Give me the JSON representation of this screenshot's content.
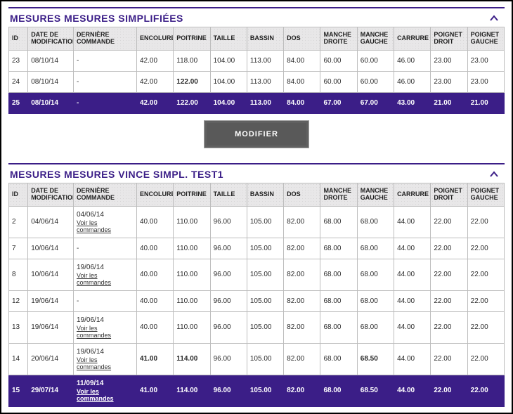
{
  "colors": {
    "brand": "#3b1e87",
    "selected_row_bg": "#3b1e87",
    "selected_row_fg": "#ffffff",
    "header_bg": "#e8e7e8",
    "header_dot": "#d6d5d6",
    "border": "#bdbdbd",
    "btn_bg": "#595959",
    "btn_border": "#606060",
    "text": "#2b2b2b"
  },
  "columns": [
    {
      "key": "id",
      "label": "ID"
    },
    {
      "key": "date_modif",
      "label": "DATE DE MODIFICATION"
    },
    {
      "key": "derniere_commande",
      "label": "DERNIÈRE COMMANDE"
    },
    {
      "key": "encolure",
      "label": "ENCOLURE"
    },
    {
      "key": "poitrine",
      "label": "POITRINE"
    },
    {
      "key": "taille",
      "label": "TAILLE"
    },
    {
      "key": "bassin",
      "label": "BASSIN"
    },
    {
      "key": "dos",
      "label": "DOS"
    },
    {
      "key": "manche_droite",
      "label": "MANCHE DROITE"
    },
    {
      "key": "manche_gauche",
      "label": "MANCHE GAUCHE"
    },
    {
      "key": "carrure",
      "label": "CARRURE"
    },
    {
      "key": "poignet_droit",
      "label": "POIGNET DROIT"
    },
    {
      "key": "poignet_gauche",
      "label": "POIGNET GAUCHE"
    }
  ],
  "modifier_label": "MODIFIER",
  "voir_link_text": "Voir les commandes",
  "section1": {
    "title": "MESURES MESURES SIMPLIFIÉES",
    "rows": [
      {
        "id": "23",
        "date_modif": "08/10/14",
        "derniere_commande": {
          "text": "-"
        },
        "encolure": "42.00",
        "poitrine": "118.00",
        "taille": "104.00",
        "bassin": "113.00",
        "dos": "84.00",
        "manche_droite": "60.00",
        "manche_gauche": "60.00",
        "carrure": "46.00",
        "poignet_droit": "23.00",
        "poignet_gauche": "23.00"
      },
      {
        "id": "24",
        "date_modif": "08/10/14",
        "derniere_commande": {
          "text": "-"
        },
        "encolure": "42.00",
        "poitrine": "122.00",
        "poitrine_bold": true,
        "taille": "104.00",
        "bassin": "113.00",
        "dos": "84.00",
        "manche_droite": "60.00",
        "manche_gauche": "60.00",
        "carrure": "46.00",
        "poignet_droit": "23.00",
        "poignet_gauche": "23.00"
      },
      {
        "id": "25",
        "date_modif": "08/10/14",
        "derniere_commande": {
          "text": "-"
        },
        "encolure": "42.00",
        "poitrine": "122.00",
        "taille": "104.00",
        "bassin": "113.00",
        "dos": "84.00",
        "manche_droite": "67.00",
        "manche_gauche": "67.00",
        "carrure": "43.00",
        "poignet_droit": "21.00",
        "poignet_gauche": "21.00",
        "selected": true,
        "bold_cols": [
          "manche_droite",
          "manche_gauche",
          "carrure",
          "poignet_droit",
          "poignet_gauche"
        ]
      }
    ]
  },
  "section2": {
    "title": "MESURES MESURES VINCE SIMPL. TEST1",
    "rows": [
      {
        "id": "2",
        "date_modif": "04/06/14",
        "derniere_commande": {
          "date": "04/06/14",
          "link": true
        },
        "encolure": "40.00",
        "poitrine": "110.00",
        "taille": "96.00",
        "bassin": "105.00",
        "dos": "82.00",
        "manche_droite": "68.00",
        "manche_gauche": "68.00",
        "carrure": "44.00",
        "poignet_droit": "22.00",
        "poignet_gauche": "22.00"
      },
      {
        "id": "7",
        "date_modif": "10/06/14",
        "derniere_commande": {
          "text": "-"
        },
        "encolure": "40.00",
        "poitrine": "110.00",
        "taille": "96.00",
        "bassin": "105.00",
        "dos": "82.00",
        "manche_droite": "68.00",
        "manche_gauche": "68.00",
        "carrure": "44.00",
        "poignet_droit": "22.00",
        "poignet_gauche": "22.00"
      },
      {
        "id": "8",
        "date_modif": "10/06/14",
        "derniere_commande": {
          "date": "19/06/14",
          "link": true
        },
        "encolure": "40.00",
        "poitrine": "110.00",
        "taille": "96.00",
        "bassin": "105.00",
        "dos": "82.00",
        "manche_droite": "68.00",
        "manche_gauche": "68.00",
        "carrure": "44.00",
        "poignet_droit": "22.00",
        "poignet_gauche": "22.00"
      },
      {
        "id": "12",
        "date_modif": "19/06/14",
        "derniere_commande": {
          "text": "-"
        },
        "encolure": "40.00",
        "poitrine": "110.00",
        "taille": "96.00",
        "bassin": "105.00",
        "dos": "82.00",
        "manche_droite": "68.00",
        "manche_gauche": "68.00",
        "carrure": "44.00",
        "poignet_droit": "22.00",
        "poignet_gauche": "22.00"
      },
      {
        "id": "13",
        "date_modif": "19/06/14",
        "derniere_commande": {
          "date": "19/06/14",
          "link": true
        },
        "encolure": "40.00",
        "poitrine": "110.00",
        "taille": "96.00",
        "bassin": "105.00",
        "dos": "82.00",
        "manche_droite": "68.00",
        "manche_gauche": "68.00",
        "carrure": "44.00",
        "poignet_droit": "22.00",
        "poignet_gauche": "22.00"
      },
      {
        "id": "14",
        "date_modif": "20/06/14",
        "derniere_commande": {
          "date": "19/06/14",
          "link": true
        },
        "encolure": "41.00",
        "encolure_bold": true,
        "poitrine": "114.00",
        "poitrine_bold": true,
        "taille": "96.00",
        "bassin": "105.00",
        "dos": "82.00",
        "manche_droite": "68.00",
        "manche_gauche": "68.50",
        "manche_gauche_bold": true,
        "carrure": "44.00",
        "poignet_droit": "22.00",
        "poignet_gauche": "22.00"
      },
      {
        "id": "15",
        "date_modif": "29/07/14",
        "derniere_commande": {
          "date": "11/09/14",
          "link": true
        },
        "encolure": "41.00",
        "poitrine": "114.00",
        "taille": "96.00",
        "bassin": "105.00",
        "dos": "82.00",
        "manche_droite": "68.00",
        "manche_gauche": "68.50",
        "carrure": "44.00",
        "poignet_droit": "22.00",
        "poignet_gauche": "22.00",
        "selected": true
      }
    ]
  }
}
